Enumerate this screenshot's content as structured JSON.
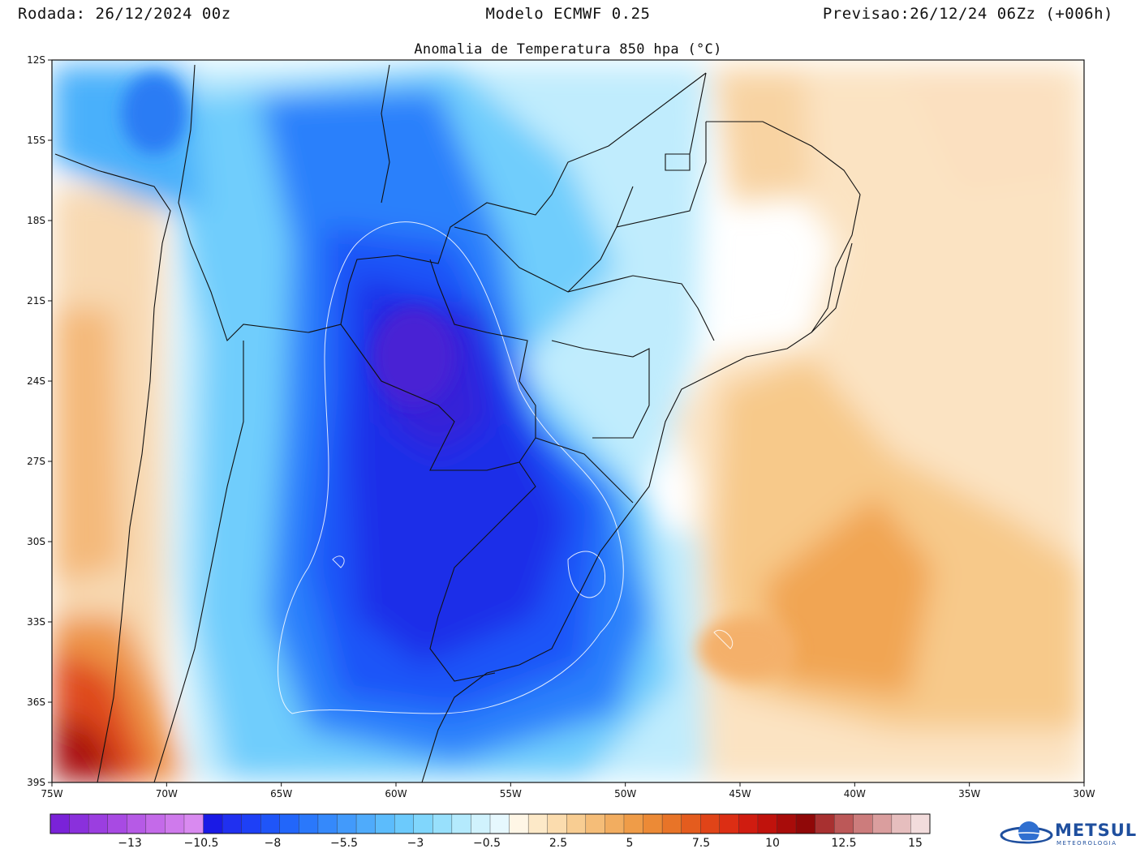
{
  "header": {
    "left": "Rodada: 26/12/2024 00z",
    "center": "Modelo ECMWF 0.25",
    "right": "Previsao:26/12/24 06Zz (+006h)"
  },
  "map": {
    "title": "Anomalia de Temperatura 850 hpa (°C)",
    "lat_ticks": [
      "12S",
      "15S",
      "18S",
      "21S",
      "24S",
      "27S",
      "30S",
      "33S",
      "36S",
      "39S"
    ],
    "lon_ticks": [
      "75W",
      "70W",
      "65W",
      "60W",
      "55W",
      "50W",
      "45W",
      "40W",
      "35W",
      "30W"
    ],
    "lat_range": [
      -12,
      -39
    ],
    "lon_range": [
      -75,
      -30
    ],
    "anomaly_regions": [
      {
        "name": "cold-core",
        "lon": -58.5,
        "lat": -24.5,
        "value": -10
      },
      {
        "name": "cold-south",
        "lon": -58,
        "lat": -32,
        "value": -7
      },
      {
        "name": "warm-ocean",
        "lon": -41,
        "lat": -32.5,
        "value": 4
      },
      {
        "name": "warm-chile",
        "lon": -73,
        "lat": -37.5,
        "value": 11
      }
    ]
  },
  "colorbar": {
    "labels": [
      "-13",
      "-10.5",
      "-8",
      "-5.5",
      "-3",
      "-0.5",
      "2.5",
      "5",
      "7.5",
      "10",
      "12.5",
      "15"
    ],
    "colors": [
      "#7a22d8",
      "#8a30dc",
      "#9b3ee0",
      "#a84ae3",
      "#b65ae6",
      "#c46ae9",
      "#cf7aec",
      "#d98af0",
      "#1a1ae6",
      "#2030f0",
      "#1e40f6",
      "#1f55f8",
      "#2266fa",
      "#2a78fb",
      "#3589fb",
      "#429afb",
      "#4fabfb",
      "#5cbcfc",
      "#6ccafc",
      "#80d6fc",
      "#98e0fc",
      "#b4eafd",
      "#d0f2fd",
      "#e6f8fe",
      "#fff6e6",
      "#fde9c8",
      "#fbdcae",
      "#f8cd92",
      "#f5bd78",
      "#f2ad60",
      "#ef9c48",
      "#ec8a36",
      "#e87428",
      "#e45c1e",
      "#e04418",
      "#dc2e14",
      "#d01c10",
      "#c0120c",
      "#a80c0a",
      "#900808",
      "#a83030",
      "#bc5858",
      "#cc7c7c",
      "#da9e9e",
      "#e6bebe",
      "#f2dcdc"
    ]
  },
  "logo": {
    "name": "METSUL",
    "sub": "METEOROLOGIA"
  }
}
